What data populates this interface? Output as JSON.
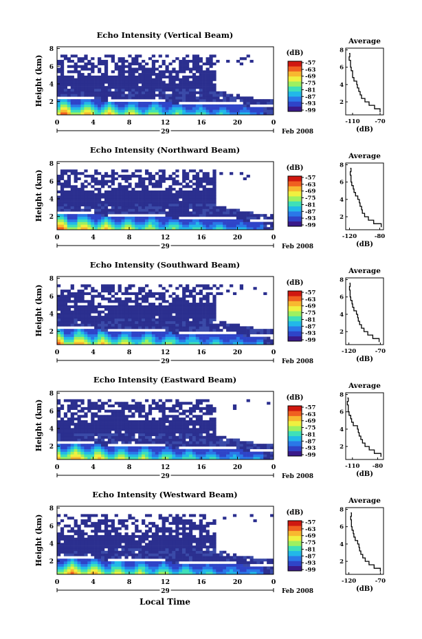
{
  "figure": {
    "date_label": "Feb 2008",
    "time_label": "Local Time",
    "colorbar_unit": "(dB)",
    "colorbar_ticks": [
      "-57",
      "-63",
      "-69",
      "-75",
      "-81",
      "-87",
      "-93",
      "-99"
    ],
    "colors": {
      "background": "#ffffff",
      "low_echo": "#2b2f8f",
      "colormap": [
        "#3a1a8a",
        "#2f44c8",
        "#2a78e8",
        "#22b8e8",
        "#3fe0b8",
        "#9ef060",
        "#f0f040",
        "#f8b830",
        "#f06020",
        "#d01810"
      ]
    }
  },
  "chart_data": [
    {
      "type": "heatmap",
      "title": "Echo Intensity (Vertical Beam)",
      "ylabel": "Height (km)",
      "x_ticks": [
        "0",
        "4",
        "8",
        "12",
        "16",
        "20",
        "0"
      ],
      "x_day_label": "29",
      "y_ticks": [
        "2",
        "4",
        "6",
        "8"
      ],
      "colorbar": {
        "unit": "(dB)",
        "range": [
          -99,
          -57
        ]
      },
      "average_profile": {
        "title": "Average",
        "xlabel": "(dB)",
        "x_ticks": [
          "-110",
          "-70"
        ],
        "y_ticks": [
          "2",
          "4",
          "6",
          "8"
        ],
        "xlim": [
          -120,
          -65
        ],
        "ylim": [
          0.5,
          8.2
        ],
        "height": [
          0.8,
          1.2,
          1.6,
          2.0,
          2.4,
          2.8,
          3.2,
          3.6,
          4.0,
          4.4,
          4.8,
          5.2,
          5.6,
          6.0,
          6.4,
          6.8,
          7.2,
          7.6
        ],
        "db": [
          -70,
          -78,
          -86,
          -92,
          -97,
          -99,
          -101,
          -103,
          -104,
          -108,
          -110,
          -110,
          -112,
          -113,
          -113,
          -115,
          -114,
          -115
        ]
      }
    },
    {
      "type": "heatmap",
      "title": "Echo Intensity (Northward Beam)",
      "ylabel": "Height (km)",
      "x_ticks": [
        "0",
        "4",
        "8",
        "12",
        "16",
        "20",
        "0"
      ],
      "x_day_label": "29",
      "y_ticks": [
        "2",
        "4",
        "6",
        "8"
      ],
      "colorbar": {
        "unit": "(dB)",
        "range": [
          -99,
          -57
        ]
      },
      "average_profile": {
        "title": "Average",
        "xlabel": "(dB)",
        "x_ticks": [
          "-120",
          "-80"
        ],
        "y_ticks": [
          "2",
          "4",
          "6",
          "8"
        ],
        "xlim": [
          -125,
          -75
        ],
        "ylim": [
          0.5,
          8.2
        ],
        "height": [
          0.8,
          1.2,
          1.6,
          2.0,
          2.4,
          2.8,
          3.2,
          3.6,
          4.0,
          4.4,
          4.8,
          5.2,
          5.6,
          6.0,
          6.4,
          6.8,
          7.2,
          7.6
        ],
        "db": [
          -78,
          -88,
          -95,
          -100,
          -103,
          -104,
          -106,
          -107,
          -109,
          -112,
          -114,
          -115,
          -117,
          -118,
          -118,
          -119,
          -118,
          -119
        ]
      }
    },
    {
      "type": "heatmap",
      "title": "Echo Intensity (Southward Beam)",
      "ylabel": "Height (km)",
      "x_ticks": [
        "0",
        "4",
        "8",
        "12",
        "16",
        "20",
        "0"
      ],
      "x_day_label": "29",
      "y_ticks": [
        "2",
        "4",
        "6",
        "8"
      ],
      "colorbar": {
        "unit": "(dB)",
        "range": [
          -99,
          -57
        ]
      },
      "average_profile": {
        "title": "Average",
        "xlabel": "(dB)",
        "x_ticks": [
          "-120",
          "-70"
        ],
        "y_ticks": [
          "2",
          "4",
          "6",
          "8"
        ],
        "xlim": [
          -125,
          -65
        ],
        "ylim": [
          0.5,
          8.2
        ],
        "height": [
          0.8,
          1.2,
          1.6,
          2.0,
          2.4,
          2.8,
          3.2,
          3.6,
          4.0,
          4.4,
          4.8,
          5.2,
          5.6,
          6.0,
          6.4,
          6.8,
          7.2,
          7.6
        ],
        "db": [
          -72,
          -82,
          -90,
          -96,
          -100,
          -103,
          -105,
          -106,
          -108,
          -112,
          -114,
          -115,
          -117,
          -118,
          -118,
          -119,
          -118,
          -119
        ]
      }
    },
    {
      "type": "heatmap",
      "title": "Echo Intensity (Eastward Beam)",
      "ylabel": "Height (km)",
      "x_ticks": [
        "0",
        "4",
        "8",
        "12",
        "16",
        "20",
        "0"
      ],
      "x_day_label": "29",
      "y_ticks": [
        "2",
        "4",
        "6",
        "8"
      ],
      "colorbar": {
        "unit": "(dB)",
        "range": [
          -99,
          -57
        ]
      },
      "average_profile": {
        "title": "Average",
        "xlabel": "(dB)",
        "x_ticks": [
          "-110",
          "-80"
        ],
        "y_ticks": [
          "2",
          "4",
          "6",
          "8"
        ],
        "xlim": [
          -118,
          -73
        ],
        "ylim": [
          0.5,
          8.2
        ],
        "height": [
          0.8,
          1.2,
          1.6,
          2.0,
          2.4,
          2.8,
          3.2,
          3.6,
          4.0,
          4.4,
          4.8,
          5.2,
          5.6,
          6.0,
          6.4,
          6.8,
          7.2,
          7.6
        ],
        "db": [
          -76,
          -84,
          -90,
          -95,
          -98,
          -100,
          -102,
          -103,
          -104,
          -109,
          -111,
          -112,
          -114,
          -115,
          -115,
          -116,
          -115,
          -116
        ]
      }
    },
    {
      "type": "heatmap",
      "title": "Echo Intensity (Westward Beam)",
      "ylabel": "Height (km)",
      "x_ticks": [
        "0",
        "4",
        "8",
        "12",
        "16",
        "20",
        "0"
      ],
      "x_day_label": "29",
      "y_ticks": [
        "2",
        "4",
        "6",
        "8"
      ],
      "colorbar": {
        "unit": "(dB)",
        "range": [
          -99,
          -57
        ]
      },
      "average_profile": {
        "title": "Average",
        "xlabel": "(dB)",
        "x_ticks": [
          "-120",
          "-70"
        ],
        "y_ticks": [
          "2",
          "4",
          "6",
          "8"
        ],
        "xlim": [
          -125,
          -65
        ],
        "ylim": [
          0.5,
          8.2
        ],
        "height": [
          0.8,
          1.2,
          1.6,
          2.0,
          2.4,
          2.8,
          3.2,
          3.6,
          4.0,
          4.4,
          4.8,
          5.2,
          5.6,
          6.0,
          6.4,
          6.8,
          7.2,
          7.6
        ],
        "db": [
          -70,
          -80,
          -88,
          -94,
          -98,
          -101,
          -103,
          -104,
          -106,
          -110,
          -112,
          -113,
          -115,
          -116,
          -116,
          -117,
          -116,
          -117
        ]
      }
    }
  ]
}
